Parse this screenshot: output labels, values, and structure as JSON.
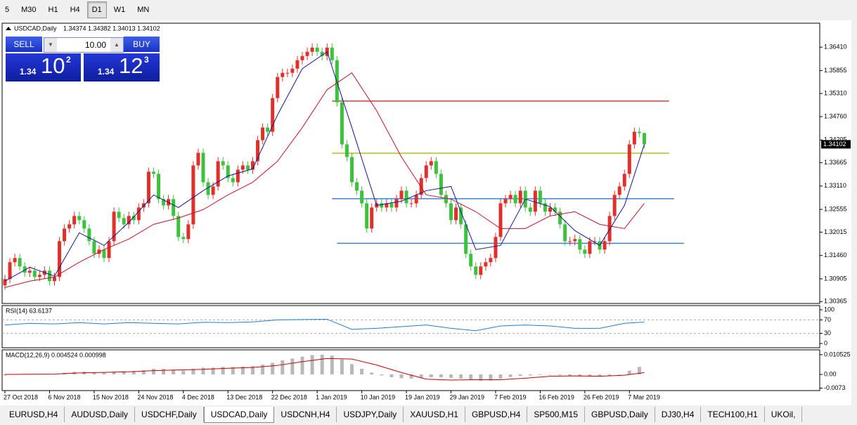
{
  "toolbar": {
    "timeframes": [
      "5",
      "M30",
      "H1",
      "H4",
      "D1",
      "W1",
      "MN"
    ],
    "active": "D1"
  },
  "trade_panel": {
    "sell": "SELL",
    "buy": "BUY",
    "lot": "10.00",
    "sell_price": {
      "prefix": "1.34",
      "big": "10",
      "sup": "2"
    },
    "buy_price": {
      "prefix": "1.34",
      "big": "12",
      "sup": "3"
    }
  },
  "tabs": {
    "items": [
      "EURUSD,H4",
      "AUDUSD,Daily",
      "USDCHF,Daily",
      "USDCAD,Daily",
      "USDCNH,H4",
      "USDJPY,Daily",
      "XAUUSD,H1",
      "GBPUSD,H4",
      "SP500,M15",
      "GBPUSD,Daily",
      "DJ30,H4",
      "TECH100,H1",
      "UKOil,"
    ],
    "active": "USDCAD,Daily"
  },
  "chart_data": [
    {
      "type": "candlestick",
      "label": "USDCAD,Daily",
      "ohlc_label": "1.34374 1.34382 1.34013 1.34102",
      "categories": [
        "27 Oct 2018",
        null,
        null,
        null,
        null,
        null,
        null,
        null,
        null,
        "6 Nov 2018",
        null,
        null,
        null,
        null,
        null,
        null,
        null,
        null,
        "15 Nov 2018",
        null,
        null,
        null,
        null,
        null,
        null,
        null,
        null,
        "24 Nov 2018",
        null,
        null,
        null,
        null,
        null,
        null,
        null,
        null,
        "4 Dec 2018",
        null,
        null,
        null,
        null,
        null,
        null,
        null,
        null,
        "13 Dec 2018",
        null,
        null,
        null,
        null,
        null,
        null,
        null,
        null,
        "22 Dec 2018",
        null,
        null,
        null,
        null,
        null,
        null,
        null,
        null,
        "1 Jan 2019",
        null,
        null,
        null,
        null,
        null,
        null,
        null,
        null,
        "10 Jan 2019",
        null,
        null,
        null,
        null,
        null,
        null,
        null,
        null,
        "19 Jan 2019",
        null,
        null,
        null,
        null,
        null,
        null,
        null,
        null,
        "29 Jan 2019",
        null,
        null,
        null,
        null,
        null,
        null,
        null,
        null,
        "7 Feb 2019",
        null,
        null,
        null,
        null,
        null,
        null,
        null,
        null,
        "16 Feb 2019",
        null,
        null,
        null,
        null,
        null,
        null,
        null,
        null,
        "26 Feb 2019",
        null,
        null,
        null,
        null,
        null,
        null,
        null,
        null,
        "7 Mar 2019",
        null,
        null,
        null
      ],
      "open": [
        1.3075,
        1.309,
        1.313,
        1.314,
        1.312,
        1.3105,
        1.311,
        1.3095,
        1.31,
        1.311,
        1.3085,
        1.3095,
        1.318,
        1.321,
        1.322,
        1.324,
        1.323,
        1.321,
        1.318,
        1.315,
        1.316,
        1.314,
        1.318,
        1.325,
        1.3235,
        1.322,
        1.324,
        1.323,
        1.326,
        1.327,
        1.3345,
        1.334,
        1.328,
        1.3265,
        1.328,
        1.324,
        1.319,
        1.3185,
        1.322,
        1.336,
        1.339,
        1.332,
        1.329,
        1.331,
        1.337,
        1.336,
        1.333,
        1.332,
        1.335,
        1.336,
        1.335,
        1.337,
        1.342,
        1.345,
        1.344,
        1.352,
        1.357,
        1.358,
        1.358,
        1.359,
        1.361,
        1.362,
        1.363,
        1.364,
        1.363,
        1.362,
        1.364,
        1.361,
        1.351,
        1.341,
        1.338,
        1.332,
        1.33,
        1.327,
        1.321,
        1.326,
        1.327,
        1.326,
        1.327,
        1.326,
        1.328,
        1.33,
        1.327,
        1.327,
        1.329,
        1.333,
        1.336,
        1.337,
        1.334,
        1.329,
        1.327,
        1.323,
        1.326,
        1.322,
        1.315,
        1.312,
        1.31,
        1.312,
        1.313,
        1.314,
        1.319,
        1.327,
        1.328,
        1.329,
        1.327,
        1.33,
        1.326,
        1.325,
        1.33,
        1.327,
        1.325,
        1.326,
        1.325,
        1.322,
        1.318,
        1.318,
        1.3185,
        1.316,
        1.315,
        1.318,
        1.318,
        1.316,
        1.318,
        1.324,
        1.329,
        1.331,
        1.334,
        1.341,
        1.344,
        1.3437
      ],
      "high": [
        1.31,
        1.314,
        1.315,
        1.315,
        1.313,
        1.312,
        1.312,
        1.311,
        1.312,
        1.312,
        1.3105,
        1.319,
        1.322,
        1.323,
        1.325,
        1.325,
        1.324,
        1.322,
        1.319,
        1.317,
        1.317,
        1.319,
        1.326,
        1.326,
        1.3245,
        1.325,
        1.325,
        1.327,
        1.328,
        1.3355,
        1.3355,
        1.335,
        1.329,
        1.329,
        1.329,
        1.325,
        1.32,
        1.323,
        1.337,
        1.34,
        1.34,
        1.333,
        1.332,
        1.338,
        1.338,
        1.337,
        1.334,
        1.336,
        1.337,
        1.337,
        1.338,
        1.343,
        1.346,
        1.346,
        1.353,
        1.358,
        1.359,
        1.359,
        1.36,
        1.362,
        1.363,
        1.364,
        1.365,
        1.365,
        1.364,
        1.365,
        1.365,
        1.362,
        1.352,
        1.342,
        1.339,
        1.333,
        1.331,
        1.328,
        1.327,
        1.328,
        1.328,
        1.328,
        1.328,
        1.329,
        1.331,
        1.331,
        1.328,
        1.33,
        1.334,
        1.337,
        1.338,
        1.338,
        1.335,
        1.33,
        1.328,
        1.327,
        1.327,
        1.323,
        1.316,
        1.313,
        1.313,
        1.314,
        1.315,
        1.32,
        1.328,
        1.329,
        1.33,
        1.33,
        1.331,
        1.331,
        1.327,
        1.331,
        1.331,
        1.328,
        1.327,
        1.327,
        1.326,
        1.323,
        1.319,
        1.3195,
        1.3195,
        1.317,
        1.319,
        1.319,
        1.319,
        1.319,
        1.325,
        1.33,
        1.332,
        1.335,
        1.342,
        1.345,
        1.345,
        1.3438
      ],
      "low": [
        1.3065,
        1.308,
        1.312,
        1.311,
        1.3095,
        1.3095,
        1.3085,
        1.3085,
        1.309,
        1.3075,
        1.3075,
        1.3085,
        1.317,
        1.32,
        1.321,
        1.322,
        1.32,
        1.317,
        1.314,
        1.314,
        1.313,
        1.313,
        1.317,
        1.3225,
        1.321,
        1.321,
        1.322,
        1.322,
        1.325,
        1.326,
        1.333,
        1.327,
        1.3255,
        1.3255,
        1.323,
        1.318,
        1.3175,
        1.3175,
        1.321,
        1.335,
        1.331,
        1.328,
        1.328,
        1.33,
        1.335,
        1.332,
        1.331,
        1.331,
        1.334,
        1.334,
        1.334,
        1.336,
        1.341,
        1.343,
        1.343,
        1.351,
        1.356,
        1.357,
        1.357,
        1.358,
        1.36,
        1.361,
        1.362,
        1.362,
        1.361,
        1.361,
        1.36,
        1.35,
        1.34,
        1.337,
        1.331,
        1.329,
        1.326,
        1.32,
        1.32,
        1.325,
        1.325,
        1.325,
        1.325,
        1.325,
        1.327,
        1.326,
        1.326,
        1.326,
        1.328,
        1.332,
        1.335,
        1.333,
        1.328,
        1.326,
        1.322,
        1.322,
        1.321,
        1.314,
        1.311,
        1.309,
        1.309,
        1.311,
        1.312,
        1.313,
        1.318,
        1.326,
        1.327,
        1.326,
        1.326,
        1.325,
        1.324,
        1.324,
        1.326,
        1.324,
        1.324,
        1.324,
        1.321,
        1.317,
        1.317,
        1.317,
        1.315,
        1.314,
        1.314,
        1.317,
        1.315,
        1.315,
        1.317,
        1.323,
        1.328,
        1.33,
        1.333,
        1.34,
        1.3427,
        1.3401
      ],
      "close": [
        1.309,
        1.313,
        1.314,
        1.312,
        1.3105,
        1.311,
        1.3095,
        1.31,
        1.311,
        1.3085,
        1.3095,
        1.318,
        1.321,
        1.322,
        1.324,
        1.323,
        1.321,
        1.318,
        1.315,
        1.316,
        1.314,
        1.318,
        1.325,
        1.3235,
        1.322,
        1.324,
        1.323,
        1.326,
        1.327,
        1.3345,
        1.334,
        1.328,
        1.3265,
        1.328,
        1.324,
        1.319,
        1.3185,
        1.322,
        1.336,
        1.339,
        1.332,
        1.329,
        1.331,
        1.337,
        1.336,
        1.333,
        1.332,
        1.335,
        1.336,
        1.335,
        1.337,
        1.342,
        1.345,
        1.344,
        1.352,
        1.357,
        1.358,
        1.358,
        1.359,
        1.361,
        1.362,
        1.363,
        1.364,
        1.363,
        1.362,
        1.364,
        1.361,
        1.351,
        1.341,
        1.338,
        1.332,
        1.33,
        1.327,
        1.321,
        1.326,
        1.327,
        1.326,
        1.327,
        1.326,
        1.328,
        1.33,
        1.327,
        1.327,
        1.329,
        1.333,
        1.336,
        1.337,
        1.334,
        1.329,
        1.327,
        1.323,
        1.326,
        1.322,
        1.315,
        1.312,
        1.31,
        1.312,
        1.313,
        1.314,
        1.319,
        1.327,
        1.328,
        1.329,
        1.327,
        1.33,
        1.326,
        1.325,
        1.33,
        1.327,
        1.325,
        1.326,
        1.325,
        1.322,
        1.318,
        1.318,
        1.3185,
        1.316,
        1.315,
        1.318,
        1.318,
        1.316,
        1.318,
        1.324,
        1.329,
        1.331,
        1.334,
        1.341,
        1.344,
        1.3437,
        1.341
      ],
      "up_color": "#e0302a",
      "down_color": "#3cc23c",
      "overlays": [
        {
          "x": [
            0,
            5,
            10,
            15,
            20,
            25,
            30,
            35,
            40,
            45,
            50,
            55,
            60,
            65,
            70,
            75,
            80,
            85,
            90,
            95,
            100,
            105,
            110,
            115,
            120,
            125,
            129
          ],
          "values": [
            1.3085,
            1.3118,
            1.3097,
            1.32,
            1.317,
            1.3225,
            1.329,
            1.326,
            1.33,
            1.3335,
            1.3352,
            1.348,
            1.359,
            1.363,
            1.345,
            1.3265,
            1.3275,
            1.33,
            1.331,
            1.316,
            1.317,
            1.328,
            1.3262,
            1.3205,
            1.317,
            1.3265,
            1.341
          ],
          "color": "#14149a"
        },
        {
          "x": [
            0,
            5,
            10,
            15,
            20,
            25,
            30,
            35,
            40,
            45,
            50,
            55,
            60,
            65,
            70,
            75,
            80,
            85,
            90,
            95,
            100,
            105,
            110,
            115,
            120,
            125,
            129
          ],
          "values": [
            1.307,
            1.3085,
            1.3095,
            1.313,
            1.316,
            1.3185,
            1.322,
            1.3235,
            1.3255,
            1.329,
            1.332,
            1.337,
            1.345,
            1.354,
            1.358,
            1.349,
            1.338,
            1.329,
            1.328,
            1.325,
            1.321,
            1.321,
            1.324,
            1.325,
            1.322,
            1.321,
            1.327
          ],
          "color": "#c8102e"
        }
      ],
      "hlines": [
        {
          "value": 1.3513,
          "x": [
            66,
            134
          ],
          "color": "#e53935"
        },
        {
          "value": 1.3389,
          "x": [
            66,
            134
          ],
          "color": "#a8c814"
        },
        {
          "value": 1.3281,
          "x": [
            66,
            135
          ],
          "color": "#3a84d8"
        },
        {
          "value": 1.3175,
          "x": [
            67,
            137
          ],
          "color": "#3a84d8"
        }
      ],
      "last_price": 1.34102,
      "ylim": [
        1.3032,
        1.3698
      ],
      "yticks": [
        {
          "value": 1.3641,
          "label": "1.36410"
        },
        {
          "value": 1.35855,
          "label": "1.35855"
        },
        {
          "value": 1.3531,
          "label": "1.35310"
        },
        {
          "value": 1.3476,
          "label": "1.34760"
        },
        {
          "value": 1.34205,
          "label": "1.34205"
        },
        {
          "value": 1.33665,
          "label": "1.33665"
        },
        {
          "value": 1.3311,
          "label": "1.33110"
        },
        {
          "value": 1.32555,
          "label": "1.32555"
        },
        {
          "value": 1.32015,
          "label": "1.32015"
        },
        {
          "value": 1.3146,
          "label": "1.31460"
        },
        {
          "value": 1.30905,
          "label": "1.30905"
        },
        {
          "value": 1.30365,
          "label": "1.30365"
        }
      ]
    },
    {
      "type": "line",
      "label": "RSI(14) 63.6137",
      "series": [
        {
          "x": [
            0,
            5,
            10,
            15,
            20,
            25,
            30,
            35,
            40,
            45,
            50,
            55,
            60,
            65,
            70,
            75,
            80,
            85,
            90,
            95,
            100,
            105,
            110,
            115,
            120,
            125,
            129
          ],
          "values": [
            55,
            60,
            58,
            62,
            58,
            62,
            60,
            58,
            63,
            62,
            64,
            70,
            71,
            72,
            42,
            45,
            50,
            55,
            45,
            38,
            52,
            55,
            52,
            45,
            45,
            60,
            63.6
          ],
          "color": "#1e7fd0"
        }
      ],
      "levels": [
        70,
        30
      ],
      "ylim": [
        -12.5,
        112.5
      ],
      "yticks": [
        100,
        70,
        30,
        0
      ]
    },
    {
      "type": "macd",
      "label": "MACD(12,26,9) 0.004524 0.000998",
      "histogram": {
        "x": [
          0,
          2,
          4,
          6,
          8,
          10,
          12,
          14,
          16,
          18,
          20,
          22,
          24,
          26,
          28,
          30,
          32,
          34,
          36,
          38,
          40,
          42,
          44,
          46,
          48,
          50,
          52,
          54,
          56,
          58,
          60,
          62,
          64,
          66,
          68,
          70,
          72,
          74,
          76,
          78,
          80,
          82,
          84,
          86,
          88,
          90,
          92,
          94,
          96,
          98,
          100,
          102,
          104,
          106,
          108,
          110,
          112,
          114,
          116,
          118,
          120,
          122,
          124,
          126,
          128
        ],
        "values": [
          -0.0005,
          0,
          0.0003,
          0.0002,
          0.0002,
          0.0002,
          0.0008,
          0.0014,
          0.0015,
          0.0012,
          0.001,
          0.0015,
          0.0017,
          0.0018,
          0.0022,
          0.003,
          0.003,
          0.0026,
          0.002,
          0.003,
          0.0036,
          0.0036,
          0.004,
          0.004,
          0.0042,
          0.0045,
          0.0052,
          0.0062,
          0.0075,
          0.0085,
          0.0095,
          0.0103,
          0.0105,
          0.01,
          0.008,
          0.0055,
          0.003,
          0.001,
          -0.0005,
          -0.0015,
          -0.002,
          -0.0022,
          -0.002,
          -0.0015,
          -0.0015,
          -0.0018,
          -0.0022,
          -0.003,
          -0.0035,
          -0.0033,
          -0.0022,
          -0.0014,
          -0.0008,
          -0.0005,
          -0.0003,
          -0.0002,
          -0.0004,
          -0.0008,
          -0.0012,
          -0.0012,
          -0.0012,
          -0.0008,
          0,
          0.002,
          0.004
        ],
        "color": "#b8b8b8"
      },
      "signal": {
        "x": [
          0,
          5,
          10,
          15,
          20,
          25,
          30,
          35,
          40,
          45,
          50,
          55,
          60,
          65,
          70,
          75,
          80,
          85,
          90,
          95,
          100,
          105,
          110,
          115,
          120,
          125,
          129
        ],
        "values": [
          0,
          0.0001,
          0.0002,
          0.0008,
          0.0011,
          0.0014,
          0.002,
          0.0024,
          0.0027,
          0.0033,
          0.0037,
          0.0048,
          0.0068,
          0.0085,
          0.0082,
          0.005,
          0.001,
          -0.0025,
          -0.003,
          -0.0028,
          -0.0028,
          -0.002,
          -0.001,
          -0.0008,
          -0.001,
          -0.0004,
          0.001
        ],
        "color": "#cc0000"
      },
      "ylim": [
        -0.0086,
        0.0131
      ],
      "yticks": [
        0.010525,
        {
          "value": 0,
          "label": "0.00"
        },
        -0.0073
      ]
    }
  ]
}
